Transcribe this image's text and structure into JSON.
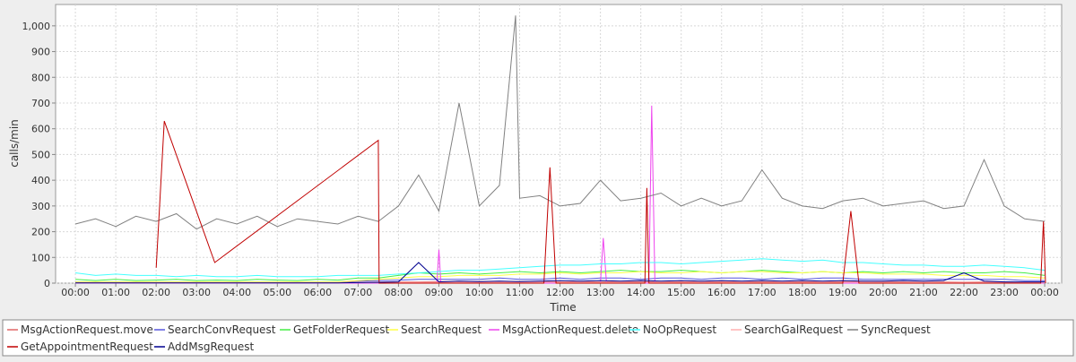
{
  "chart_data": {
    "type": "line",
    "x_label": "Time",
    "y_label": "calls/min",
    "xlim": [
      -0.49,
      24.42
    ],
    "ylim": [
      0,
      1083
    ],
    "xticks": [
      {
        "value": 0,
        "label": "00:00"
      },
      {
        "value": 1,
        "label": "01:00"
      },
      {
        "value": 2,
        "label": "02:00"
      },
      {
        "value": 3,
        "label": "03:00"
      },
      {
        "value": 4,
        "label": "04:00"
      },
      {
        "value": 5,
        "label": "05:00"
      },
      {
        "value": 6,
        "label": "06:00"
      },
      {
        "value": 7,
        "label": "07:00"
      },
      {
        "value": 8,
        "label": "08:00"
      },
      {
        "value": 9,
        "label": "09:00"
      },
      {
        "value": 10,
        "label": "10:00"
      },
      {
        "value": 11,
        "label": "11:00"
      },
      {
        "value": 12,
        "label": "12:00"
      },
      {
        "value": 13,
        "label": "13:00"
      },
      {
        "value": 14,
        "label": "14:00"
      },
      {
        "value": 15,
        "label": "15:00"
      },
      {
        "value": 16,
        "label": "16:00"
      },
      {
        "value": 17,
        "label": "17:00"
      },
      {
        "value": 18,
        "label": "18:00"
      },
      {
        "value": 19,
        "label": "19:00"
      },
      {
        "value": 20,
        "label": "20:00"
      },
      {
        "value": 21,
        "label": "21:00"
      },
      {
        "value": 22,
        "label": "22:00"
      },
      {
        "value": 23,
        "label": "23:00"
      },
      {
        "value": 24,
        "label": "00:00"
      }
    ],
    "yticks": [
      0,
      100,
      200,
      300,
      400,
      500,
      600,
      700,
      800,
      900,
      {
        "value": 1000,
        "label": "1,000"
      }
    ],
    "grid": true,
    "x": [
      0,
      0.5,
      1,
      1.5,
      2,
      2.5,
      3,
      3.5,
      4,
      4.5,
      5,
      5.5,
      6,
      6.5,
      7,
      7.5,
      8,
      8.5,
      9,
      9.5,
      10,
      10.5,
      11,
      11.5,
      12,
      12.5,
      13,
      13.5,
      14,
      14.5,
      15,
      15.5,
      16,
      16.5,
      17,
      17.5,
      18,
      18.5,
      19,
      19.5,
      20,
      20.5,
      21,
      21.5,
      22,
      22.5,
      23,
      23.5,
      24
    ],
    "series": [
      {
        "name": "MsgActionRequest.move",
        "color": "#e06666",
        "values": [
          2,
          3,
          2,
          3,
          2,
          3,
          2,
          3,
          2,
          3,
          2,
          3,
          2,
          3,
          3,
          4,
          5,
          5,
          6,
          5,
          6,
          5,
          6,
          6,
          5,
          6,
          5,
          6,
          6,
          5,
          6,
          5,
          6,
          5,
          6,
          5,
          6,
          5,
          6,
          5,
          5,
          5,
          4,
          5,
          4,
          5,
          4,
          3,
          3
        ]
      },
      {
        "name": "SearchConvRequest",
        "color": "#5555dd",
        "values": [
          5,
          5,
          5,
          5,
          5,
          5,
          5,
          5,
          5,
          5,
          5,
          5,
          5,
          5,
          8,
          10,
          12,
          15,
          15,
          15,
          15,
          20,
          15,
          15,
          20,
          15,
          20,
          20,
          15,
          20,
          20,
          15,
          20,
          20,
          15,
          20,
          15,
          20,
          20,
          15,
          15,
          15,
          15,
          15,
          15,
          15,
          15,
          10,
          10
        ]
      },
      {
        "name": "GetFolderRequest",
        "color": "#44ee44",
        "values": [
          15,
          10,
          15,
          10,
          12,
          15,
          10,
          12,
          10,
          15,
          12,
          10,
          15,
          12,
          20,
          20,
          30,
          40,
          35,
          40,
          35,
          40,
          45,
          40,
          45,
          40,
          45,
          50,
          45,
          45,
          50,
          45,
          40,
          45,
          50,
          45,
          40,
          45,
          40,
          45,
          40,
          45,
          40,
          45,
          40,
          40,
          45,
          40,
          30
        ]
      },
      {
        "name": "SearchRequest",
        "color": "#ffff44",
        "values": [
          5,
          5,
          5,
          5,
          5,
          5,
          5,
          5,
          5,
          5,
          5,
          5,
          5,
          5,
          10,
          15,
          20,
          25,
          25,
          30,
          30,
          30,
          35,
          35,
          40,
          35,
          40,
          40,
          45,
          40,
          40,
          45,
          40,
          45,
          45,
          40,
          40,
          45,
          40,
          40,
          35,
          35,
          35,
          30,
          30,
          30,
          25,
          25,
          20
        ]
      },
      {
        "name": "MsgActionRequest.delete",
        "color": "#ee44ee",
        "x": [
          0,
          8.95,
          9.0,
          9.05,
          13.0,
          13.07,
          13.15,
          14.2,
          14.27,
          14.35,
          24
        ],
        "values": [
          0,
          0,
          130,
          0,
          0,
          175,
          0,
          0,
          690,
          0,
          0
        ]
      },
      {
        "name": "NoOpRequest",
        "color": "#44ffff",
        "values": [
          40,
          30,
          35,
          30,
          30,
          25,
          30,
          25,
          25,
          30,
          25,
          25,
          25,
          30,
          30,
          30,
          35,
          40,
          45,
          50,
          50,
          55,
          60,
          65,
          70,
          70,
          75,
          75,
          80,
          80,
          75,
          80,
          85,
          90,
          95,
          90,
          85,
          90,
          80,
          80,
          75,
          70,
          70,
          65,
          65,
          70,
          65,
          60,
          50
        ]
      },
      {
        "name": "SearchGalRequest",
        "color": "#ffb0b0",
        "values": [
          1,
          1,
          1,
          1,
          1,
          1,
          1,
          1,
          1,
          1,
          1,
          1,
          1,
          1,
          2,
          2,
          3,
          3,
          3,
          4,
          3,
          4,
          3,
          4,
          3,
          4,
          3,
          4,
          3,
          4,
          3,
          4,
          3,
          4,
          3,
          4,
          3,
          4,
          3,
          4,
          3,
          3,
          3,
          3,
          3,
          3,
          3,
          2,
          2
        ]
      },
      {
        "name": "SyncRequest",
        "color": "#808080",
        "x": [
          0,
          0.5,
          1,
          1.5,
          2,
          2.5,
          3,
          3.5,
          4,
          4.5,
          5,
          5.5,
          6,
          6.5,
          7,
          7.5,
          8,
          8.5,
          9,
          9.5,
          10,
          10.5,
          10.9,
          11,
          11.5,
          12,
          12.5,
          13,
          13.5,
          14,
          14.5,
          15,
          15.5,
          16,
          16.5,
          17,
          17.5,
          18,
          18.5,
          19,
          19.5,
          20,
          20.5,
          21,
          21.5,
          22,
          22.5,
          23,
          23.5,
          24
        ],
        "values": [
          230,
          250,
          220,
          260,
          240,
          270,
          210,
          250,
          230,
          260,
          220,
          250,
          240,
          230,
          260,
          240,
          300,
          420,
          280,
          700,
          300,
          380,
          1040,
          330,
          340,
          300,
          310,
          400,
          320,
          330,
          350,
          300,
          330,
          300,
          320,
          440,
          330,
          300,
          290,
          320,
          330,
          300,
          310,
          320,
          290,
          300,
          480,
          300,
          250,
          240
        ]
      },
      {
        "name": "GetAppointmentRequest",
        "color": "#c00000",
        "x": [
          2.0,
          2.2,
          3.45,
          7.5,
          7.52,
          11.6,
          11.75,
          11.9,
          14.1,
          14.15,
          14.2,
          19.0,
          19.2,
          19.4,
          23.9,
          23.97,
          24.02
        ],
        "values": [
          60,
          630,
          80,
          555,
          0,
          0,
          450,
          0,
          0,
          370,
          0,
          0,
          280,
          0,
          0,
          240,
          0
        ]
      },
      {
        "name": "AddMsgRequest",
        "color": "#000090",
        "values": [
          1,
          1,
          1,
          1,
          1,
          1,
          1,
          1,
          1,
          1,
          1,
          1,
          1,
          1,
          2,
          3,
          5,
          80,
          5,
          8,
          6,
          8,
          6,
          8,
          10,
          8,
          10,
          8,
          10,
          8,
          10,
          8,
          10,
          8,
          10,
          8,
          10,
          8,
          10,
          8,
          8,
          10,
          8,
          10,
          40,
          8,
          5,
          5,
          5
        ]
      }
    ]
  }
}
